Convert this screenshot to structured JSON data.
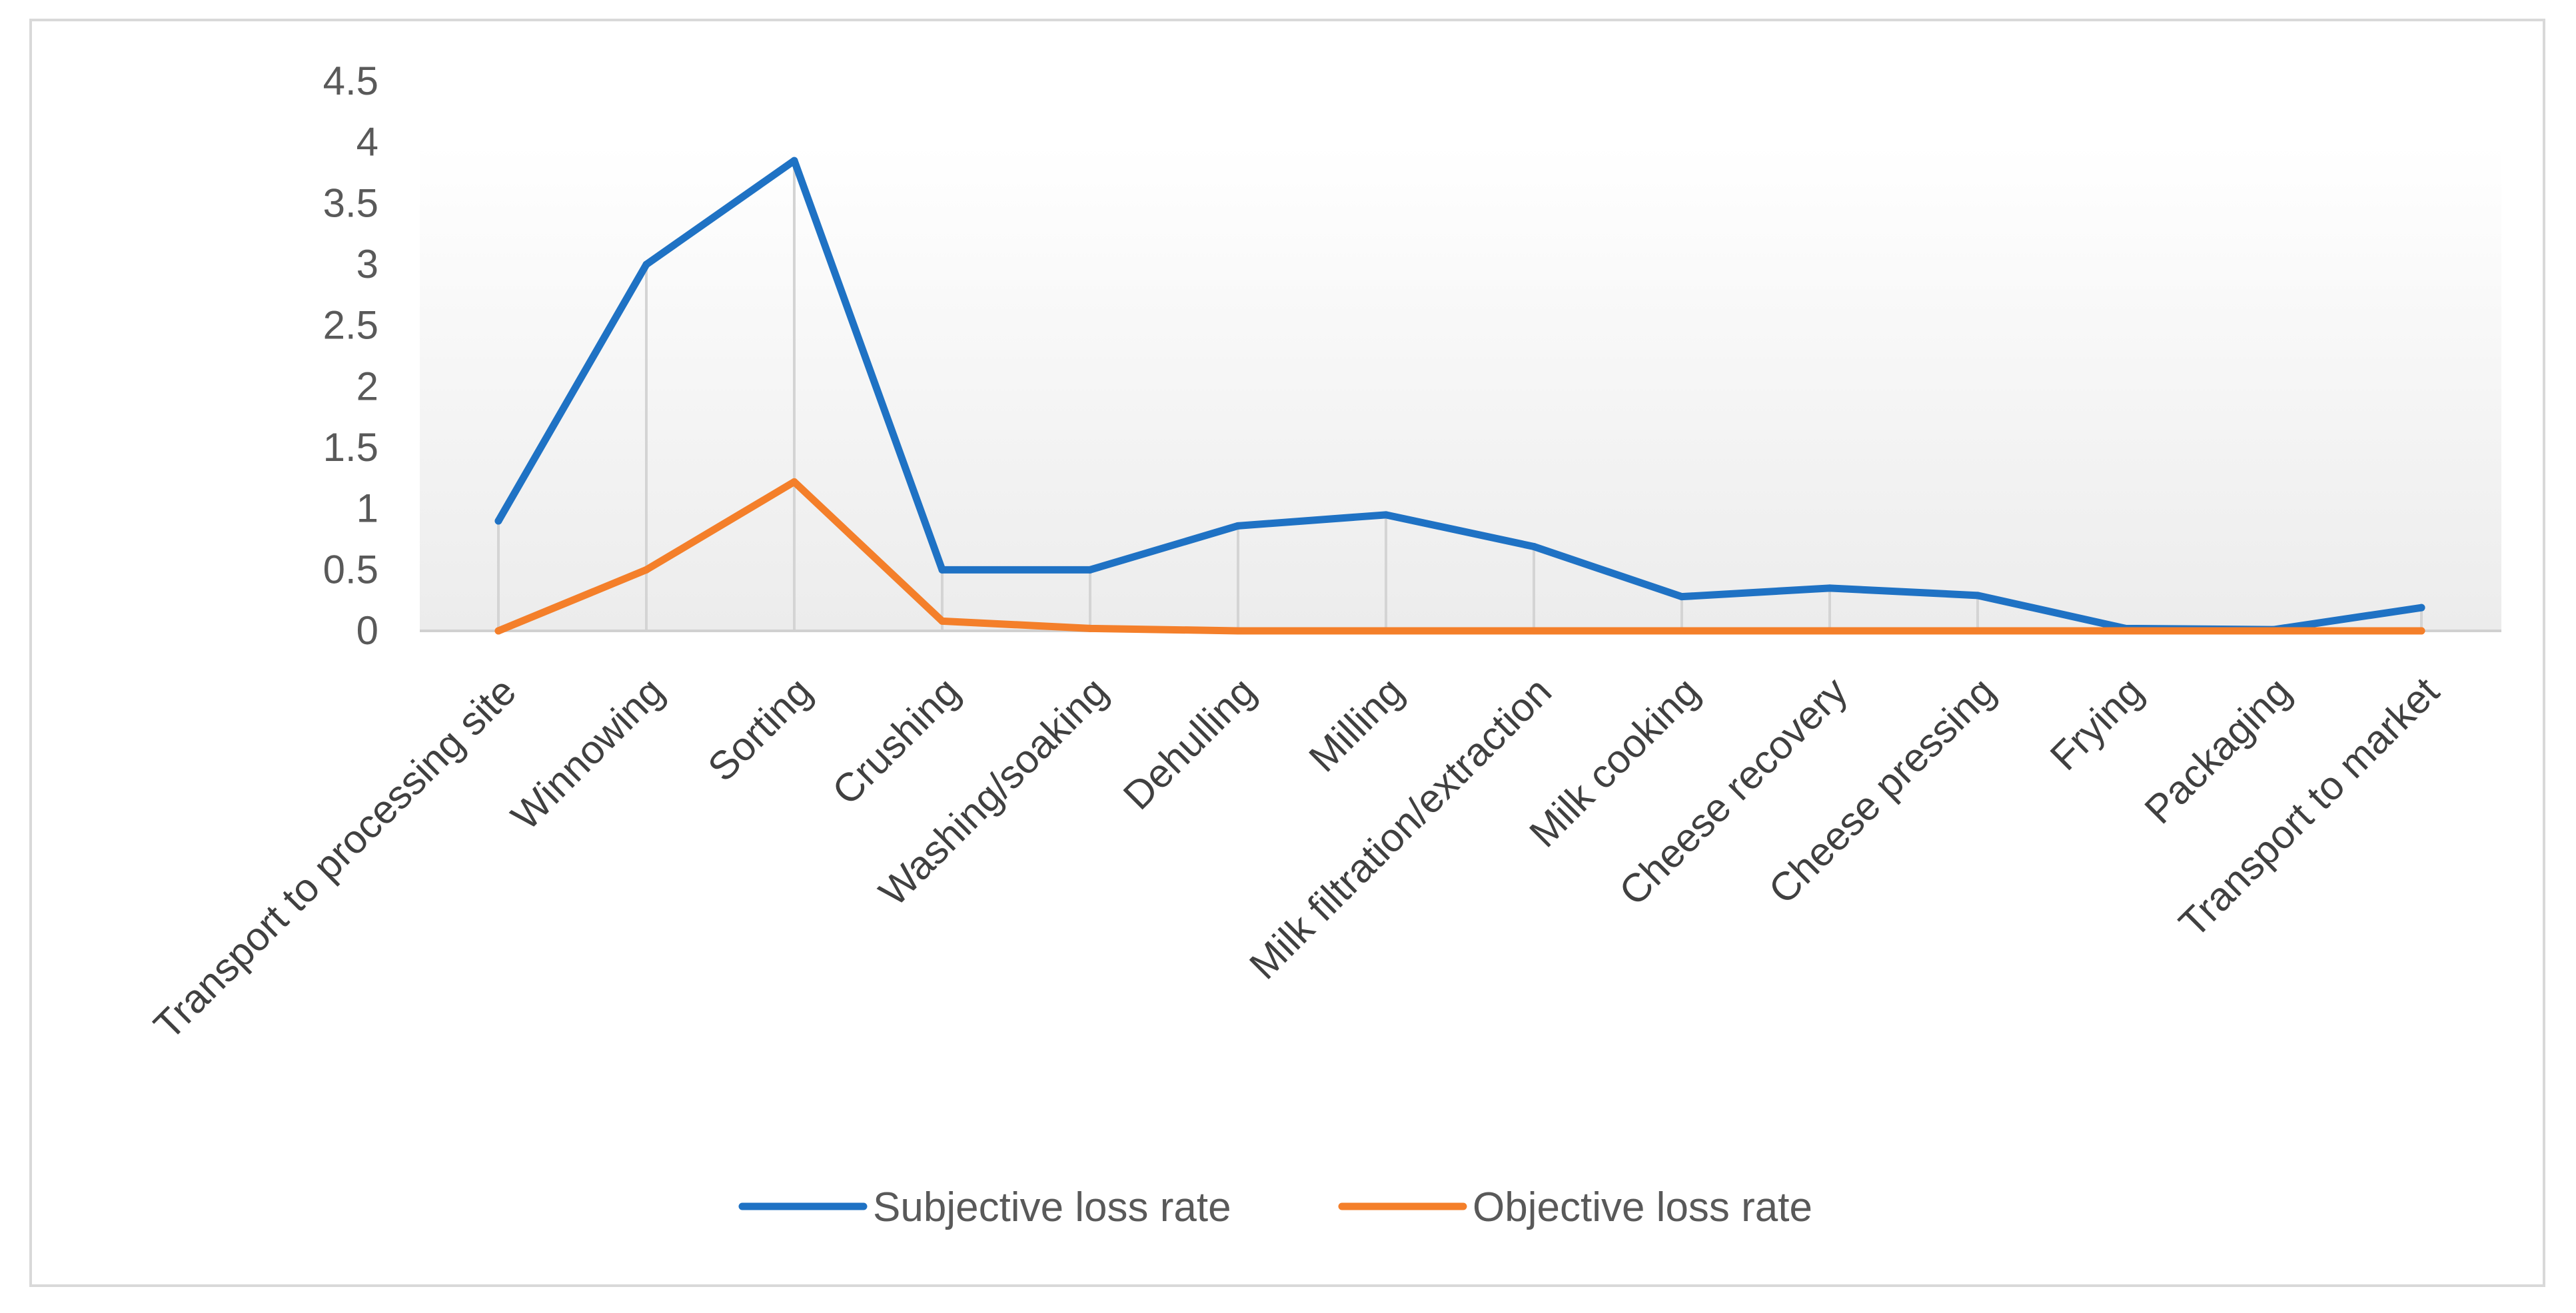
{
  "chart_data": {
    "type": "line",
    "title": "",
    "xlabel": "",
    "ylabel": "",
    "ylim": [
      0,
      4.5
    ],
    "y_ticks": [
      0,
      0.5,
      1,
      1.5,
      2,
      2.5,
      3,
      3.5,
      4,
      4.5
    ],
    "y_tick_labels": [
      "0",
      "0.5",
      "1",
      "1.5",
      "2",
      "2.5",
      "3",
      "3.5",
      "4",
      "4.5"
    ],
    "categories": [
      "Transport to processing site",
      "Winnowing",
      "Sorting",
      "Crushing",
      "Washing/soaking",
      "Dehulling",
      "Milling",
      "Milk filtration/extraction",
      "Milk cooking",
      "Cheese recovery",
      "Cheese pressing",
      "Frying",
      "Packaging",
      "Transport to market"
    ],
    "series": [
      {
        "name": "Subjective loss rate",
        "color": "#1f72c4",
        "values": [
          0.9,
          3.0,
          3.85,
          0.5,
          0.5,
          0.86,
          0.95,
          0.69,
          0.28,
          0.35,
          0.29,
          0.02,
          0.01,
          0.19
        ]
      },
      {
        "name": "Objective loss rate",
        "color": "#f47f2a",
        "values": [
          0.0,
          0.5,
          1.22,
          0.08,
          0.02,
          0.0,
          0.0,
          0.0,
          0.0,
          0.0,
          0.0,
          0.0,
          0.0,
          0.0
        ]
      }
    ],
    "legend_position": "bottom",
    "grid": "vertical drop lines"
  }
}
